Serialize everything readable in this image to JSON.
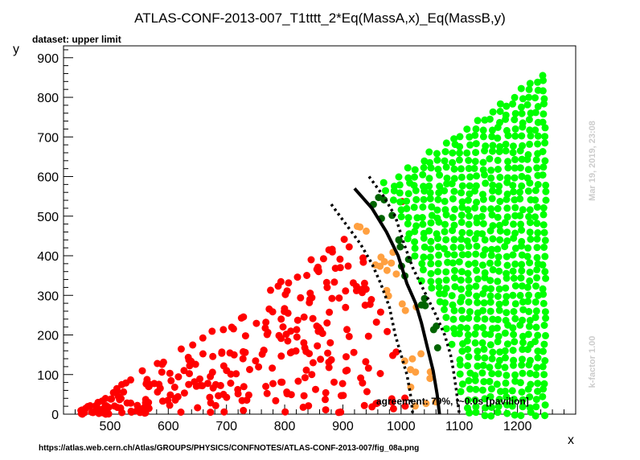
{
  "chart_data": {
    "type": "scatter",
    "title": "ATLAS-CONF-2013-007_T1tttt_2*Eq(MassA,x)_Eq(MassB,y)",
    "subtitle": "dataset: upper limit",
    "xlabel": "x",
    "ylabel": "y",
    "xlim": [
      420,
      1300
    ],
    "ylim": [
      0,
      930
    ],
    "x_ticks": [
      500,
      600,
      700,
      800,
      900,
      1000,
      1100,
      1200
    ],
    "y_ticks": [
      0,
      100,
      200,
      300,
      400,
      500,
      600,
      700,
      800,
      900
    ],
    "grid": false,
    "series": [
      {
        "color": "#ff0000",
        "marker": "circle",
        "region": "excluded points, x from ~450 to ~1000, y up to ~530 below the expected limit"
      },
      {
        "color": "#ffa040",
        "marker": "circle",
        "region": "points near the limit, x ~930-1060"
      },
      {
        "color": "#006400",
        "marker": "circle",
        "region": "points near the upper band, x ~950-1090"
      },
      {
        "color": "#00ff00",
        "marker": "circle",
        "region": "allowed points, x ~960-1250 up to y ~880"
      }
    ],
    "lines": [
      {
        "style": "solid",
        "color": "#000000",
        "x": [
          920,
          950,
          975,
          995,
          1010,
          1025,
          1035,
          1045,
          1055,
          1062,
          1066
        ],
        "y": [
          570,
          520,
          460,
          400,
          330,
          280,
          230,
          170,
          110,
          50,
          0
        ]
      },
      {
        "style": "dotted",
        "color": "#000000",
        "x": [
          880,
          905,
          930,
          950,
          965,
          980,
          990,
          1000,
          1010,
          1015,
          1018,
          1020
        ],
        "y": [
          530,
          480,
          430,
          380,
          330,
          270,
          200,
          150,
          100,
          60,
          30,
          0
        ]
      },
      {
        "style": "dotted",
        "color": "#000000",
        "x": [
          945,
          970,
          990,
          1005,
          1020,
          1040,
          1060,
          1075,
          1085,
          1090,
          1095,
          1100
        ],
        "y": [
          600,
          550,
          500,
          430,
          370,
          310,
          250,
          200,
          150,
          110,
          60,
          0
        ]
      }
    ],
    "annotations": [
      "agreement: 79%, t~0.0s [pavilion]"
    ]
  },
  "side_labels": {
    "timestamp": "Mar 19, 2019, 23:08",
    "kfactor": "k-factor 1.00"
  },
  "footer_url": "https://atlas.web.cern.ch/Atlas/GROUPS/PHYSICS/CONFNOTES/ATLAS-CONF-2013-007/fig_08a.png"
}
